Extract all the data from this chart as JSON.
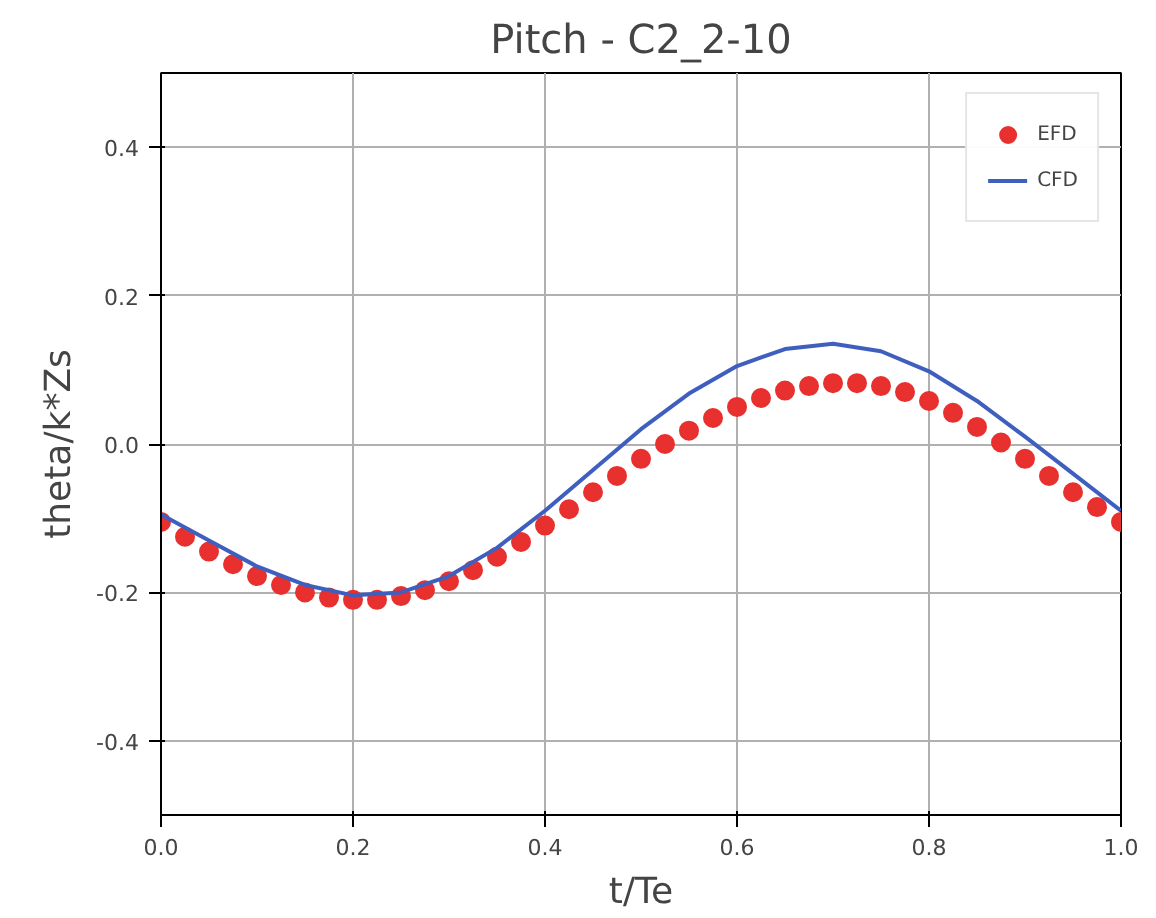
{
  "chart_data": {
    "type": "line",
    "title": "Pitch - C2_2-10",
    "xlabel": "t/Te",
    "ylabel": "theta/k*Zs",
    "xlim": [
      0.0,
      1.0
    ],
    "ylim": [
      -0.5,
      0.5
    ],
    "xticks": [
      {
        "value": 0,
        "label": "0.0"
      },
      0.2,
      0.4,
      0.6,
      0.8,
      {
        "value": 1,
        "label": "1.0"
      }
    ],
    "yticks": [
      -0.4,
      -0.2,
      {
        "value": 0,
        "label": "0.0"
      },
      0.2,
      0.4
    ],
    "grid": true,
    "legend": "top right",
    "series": [
      {
        "name": "EFD",
        "type": "scatter",
        "marker": "circle",
        "color": "#e8302f",
        "x": [
          0,
          0.025,
          0.05,
          0.075,
          0.1,
          0.125,
          0.15,
          0.175,
          0.2,
          0.225,
          0.25,
          0.275,
          0.3,
          0.325,
          0.35,
          0.375,
          0.4,
          0.425,
          0.45,
          0.475,
          0.5,
          0.525,
          0.55,
          0.575,
          0.6,
          0.625,
          0.65,
          0.675,
          0.7,
          0.725,
          0.75,
          0.775,
          0.8,
          0.825,
          0.85,
          0.875,
          0.9,
          0.925,
          0.95,
          0.975,
          1.0
        ],
        "values": [
          -0.105,
          -0.125,
          -0.145,
          -0.162,
          -0.178,
          -0.19,
          -0.2,
          -0.207,
          -0.21,
          -0.21,
          -0.205,
          -0.197,
          -0.185,
          -0.17,
          -0.152,
          -0.132,
          -0.11,
          -0.088,
          -0.065,
          -0.043,
          -0.02,
          0.0,
          0.018,
          0.035,
          0.05,
          0.062,
          0.072,
          0.078,
          0.082,
          0.082,
          0.078,
          0.07,
          0.058,
          0.042,
          0.023,
          0.002,
          -0.02,
          -0.043,
          -0.065,
          -0.085,
          -0.105
        ]
      },
      {
        "name": "CFD",
        "color": "#3f5fbf",
        "x": [
          0,
          0.05,
          0.1,
          0.15,
          0.2,
          0.25,
          0.3,
          0.35,
          0.4,
          0.45,
          0.5,
          0.55,
          0.6,
          0.65,
          0.7,
          0.75,
          0.8,
          0.85,
          0.9,
          0.95,
          1.0
        ],
        "values": [
          -0.095,
          -0.13,
          -0.165,
          -0.19,
          -0.204,
          -0.2,
          -0.178,
          -0.14,
          -0.09,
          -0.035,
          0.02,
          0.068,
          0.105,
          0.128,
          0.135,
          0.125,
          0.098,
          0.058,
          0.01,
          -0.04,
          -0.09
        ]
      }
    ]
  }
}
